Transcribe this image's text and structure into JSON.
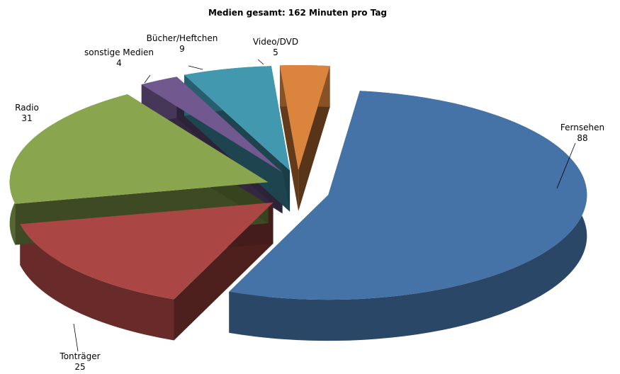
{
  "chart_data": {
    "type": "pie",
    "title": "Medien gesamt: 162 Minuten  pro Tag",
    "categories": [
      "Fernsehen",
      "Tonträger",
      "Radio",
      "sonstige Medien",
      "Bücher/Heftchen",
      "Video/DVD"
    ],
    "values": [
      88,
      25,
      31,
      4,
      9,
      5
    ],
    "series": [
      {
        "name": "",
        "values": [
          88,
          25,
          31,
          4,
          9,
          5
        ]
      }
    ],
    "colors": [
      "#4572A7",
      "#AA4643",
      "#89A54E",
      "#71588F",
      "#4198AF",
      "#DB843D"
    ],
    "legend": "none",
    "style": "3d-exploded"
  }
}
